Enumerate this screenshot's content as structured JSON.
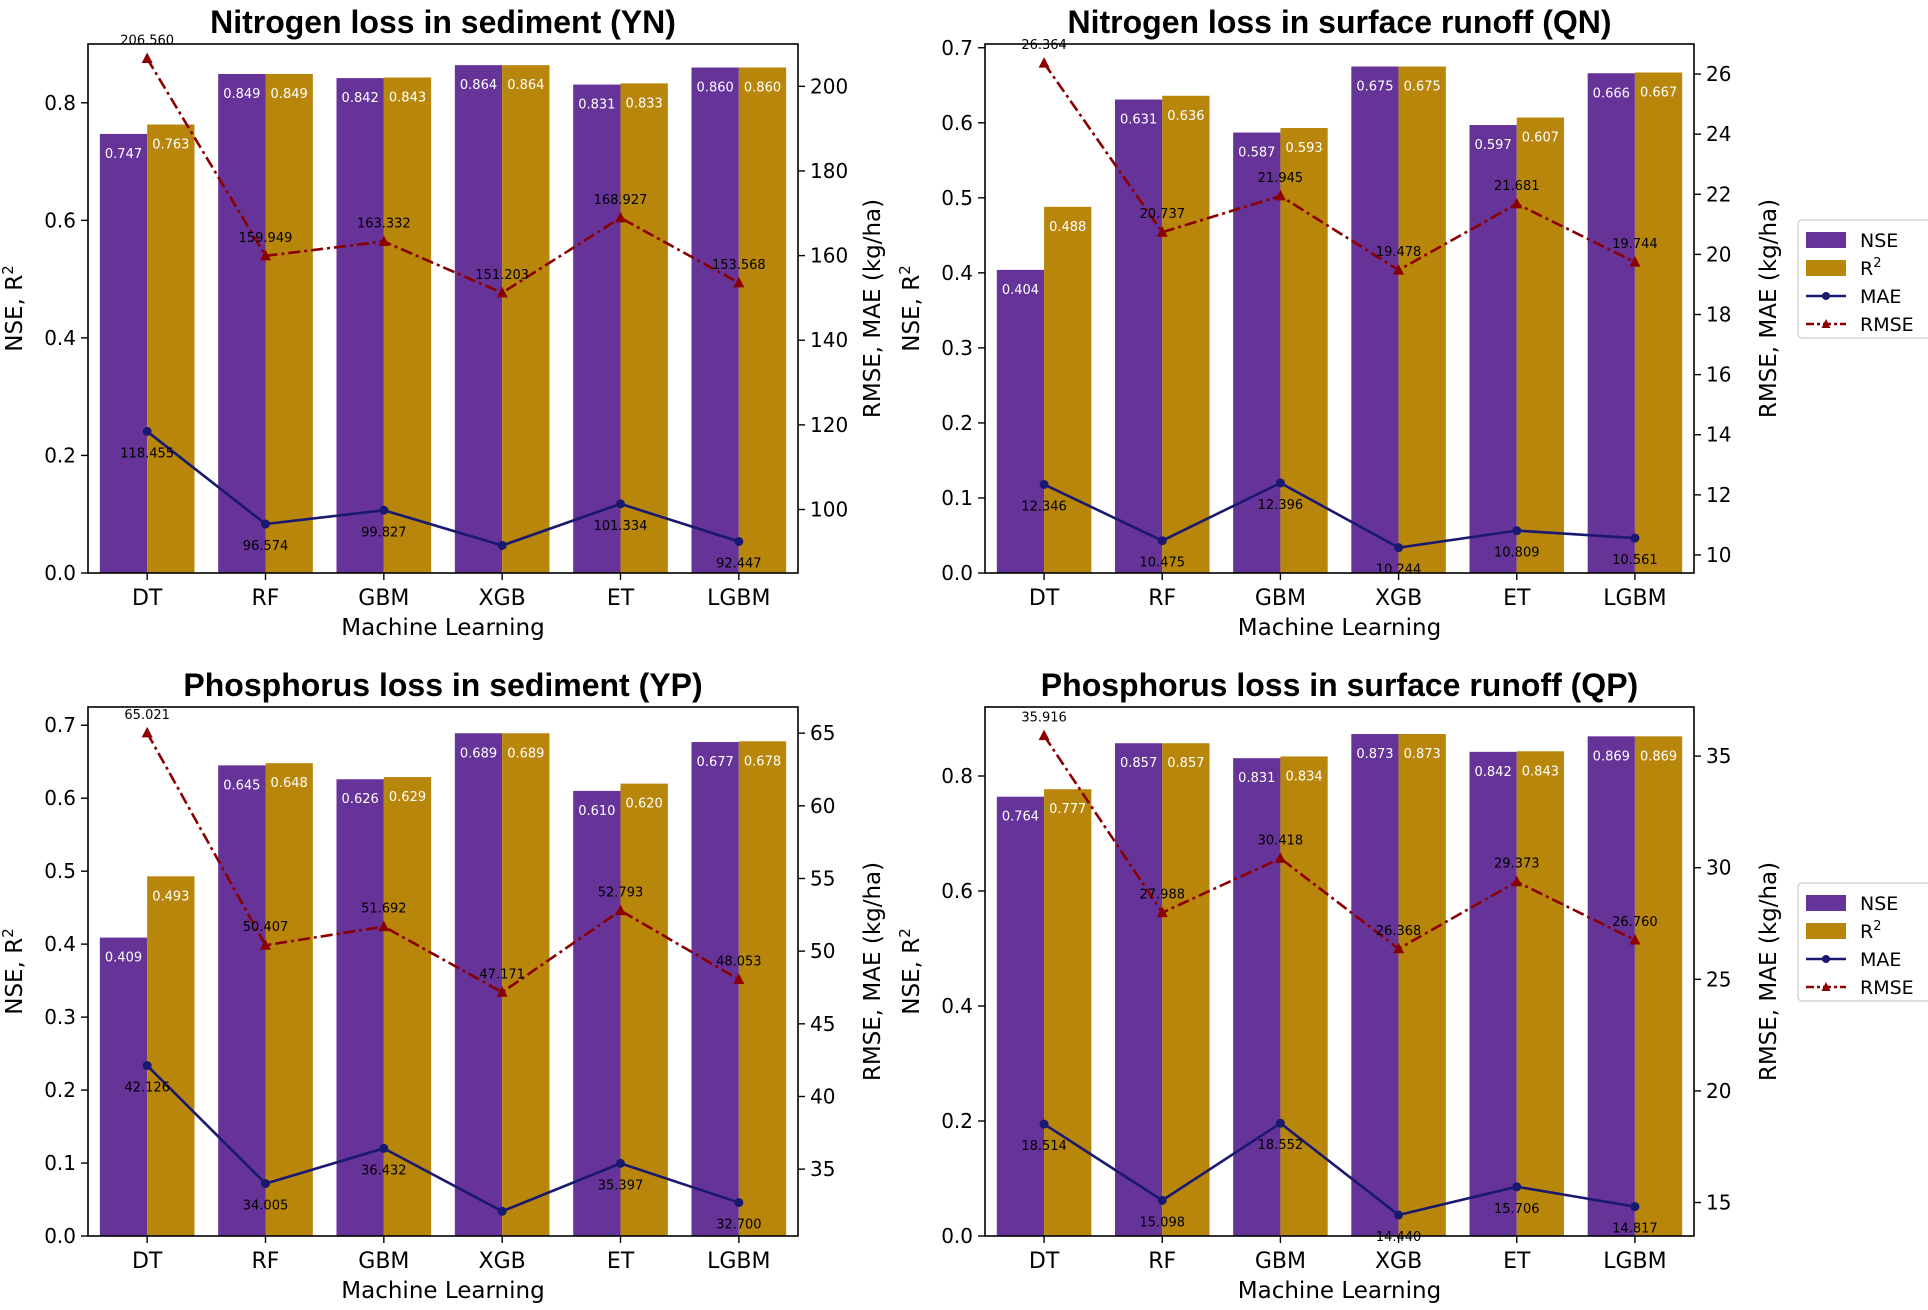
{
  "colors": {
    "nse": "#663399",
    "r2": "#b8860b",
    "mae": "#191970",
    "rmse": "#8b0000"
  },
  "legend": {
    "nse": "NSE",
    "r2": "R",
    "r2_sup": "2",
    "mae": "MAE",
    "rmse": "RMSE"
  },
  "chart_data": [
    {
      "type": "bar",
      "title": "Nitrogen loss in sediment (YN)",
      "xlabel": "Machine Learning",
      "ylabel": "NSE, R",
      "ylabel_sup": "2",
      "y2label": "RMSE, MAE (kg/ha)",
      "categories": [
        "DT",
        "RF",
        "GBM",
        "XGB",
        "ET",
        "LGBM"
      ],
      "ylim": [
        0,
        0.9
      ],
      "yticks": [
        0.0,
        0.2,
        0.4,
        0.6,
        0.8
      ],
      "y2lim": [
        85,
        210
      ],
      "y2ticks": [
        100,
        120,
        140,
        160,
        180,
        200
      ],
      "series": [
        {
          "name": "NSE",
          "axis": "left",
          "kind": "bar",
          "values": [
            0.747,
            0.849,
            0.842,
            0.864,
            0.831,
            0.86
          ],
          "labels": [
            "0.747",
            "0.849",
            "0.842",
            "0.864",
            "0.831",
            "0.860"
          ]
        },
        {
          "name": "R2",
          "axis": "left",
          "kind": "bar",
          "values": [
            0.763,
            0.849,
            0.843,
            0.864,
            0.833,
            0.86
          ],
          "labels": [
            "0.763",
            "0.849",
            "0.843",
            "0.864",
            "0.833",
            "0.860"
          ]
        },
        {
          "name": "MAE",
          "axis": "right",
          "kind": "line",
          "values": [
            118.455,
            96.574,
            99.827,
            91.5,
            101.334,
            92.447
          ],
          "labels": [
            "118.455",
            "96.574",
            "99.827",
            "",
            "101.334",
            "92.447"
          ]
        },
        {
          "name": "RMSE",
          "axis": "right",
          "kind": "line",
          "values": [
            206.56,
            159.949,
            163.332,
            151.203,
            168.927,
            153.568
          ],
          "labels": [
            "206.560",
            "159.949",
            "163.332",
            "151.203",
            "168.927",
            "153.568"
          ]
        }
      ],
      "legend": false,
      "grid": false
    },
    {
      "type": "bar",
      "title": "Nitrogen loss in surface runoff (QN)",
      "xlabel": "Machine Learning",
      "ylabel": "NSE, R",
      "ylabel_sup": "2",
      "y2label": "RMSE, MAE (kg/ha)",
      "categories": [
        "DT",
        "RF",
        "GBM",
        "XGB",
        "ET",
        "LGBM"
      ],
      "ylim": [
        0,
        0.705
      ],
      "yticks": [
        0.0,
        0.1,
        0.2,
        0.3,
        0.4,
        0.5,
        0.6,
        0.7
      ],
      "y2lim": [
        9.4,
        27.0
      ],
      "y2ticks": [
        10,
        12,
        14,
        16,
        18,
        20,
        22,
        24,
        26
      ],
      "series": [
        {
          "name": "NSE",
          "axis": "left",
          "kind": "bar",
          "values": [
            0.404,
            0.631,
            0.587,
            0.675,
            0.597,
            0.666
          ],
          "labels": [
            "0.404",
            "0.631",
            "0.587",
            "0.675",
            "0.597",
            "0.666"
          ]
        },
        {
          "name": "R2",
          "axis": "left",
          "kind": "bar",
          "values": [
            0.488,
            0.636,
            0.593,
            0.675,
            0.607,
            0.667
          ],
          "labels": [
            "0.488",
            "0.636",
            "0.593",
            "0.675",
            "0.607",
            "0.667"
          ]
        },
        {
          "name": "MAE",
          "axis": "right",
          "kind": "line",
          "values": [
            12.346,
            10.475,
            12.396,
            10.244,
            10.809,
            10.561
          ],
          "labels": [
            "12.346",
            "10.475",
            "12.396",
            "10.244",
            "10.809",
            "10.561"
          ]
        },
        {
          "name": "RMSE",
          "axis": "right",
          "kind": "line",
          "values": [
            26.364,
            20.737,
            21.945,
            19.478,
            21.681,
            19.744
          ],
          "labels": [
            "26.364",
            "20.737",
            "21.945",
            "19.478",
            "21.681",
            "19.744"
          ]
        }
      ],
      "legend": true,
      "legend_position": "right"
    },
    {
      "type": "bar",
      "title": "Phosphorus loss in sediment (YP)",
      "xlabel": "Machine Learning",
      "ylabel": "NSE, R",
      "ylabel_sup": "2",
      "y2label": "RMSE, MAE (kg/ha)",
      "categories": [
        "DT",
        "RF",
        "GBM",
        "XGB",
        "ET",
        "LGBM"
      ],
      "ylim": [
        0,
        0.725
      ],
      "yticks": [
        0.0,
        0.1,
        0.2,
        0.3,
        0.4,
        0.5,
        0.6,
        0.7
      ],
      "y2lim": [
        30.4,
        66.8
      ],
      "y2ticks": [
        35,
        40,
        45,
        50,
        55,
        60,
        65
      ],
      "series": [
        {
          "name": "NSE",
          "axis": "left",
          "kind": "bar",
          "values": [
            0.409,
            0.645,
            0.626,
            0.689,
            0.61,
            0.677
          ],
          "labels": [
            "0.409",
            "0.645",
            "0.626",
            "0.689",
            "0.610",
            "0.677"
          ]
        },
        {
          "name": "R2",
          "axis": "left",
          "kind": "bar",
          "values": [
            0.493,
            0.648,
            0.629,
            0.689,
            0.62,
            0.678
          ],
          "labels": [
            "0.493",
            "0.648",
            "0.629",
            "0.689",
            "0.620",
            "0.678"
          ]
        },
        {
          "name": "MAE",
          "axis": "right",
          "kind": "line",
          "values": [
            42.126,
            34.005,
            36.432,
            32.1,
            35.397,
            32.7
          ],
          "labels": [
            "42.126",
            "34.005",
            "36.432",
            "",
            "35.397",
            "32.700"
          ]
        },
        {
          "name": "RMSE",
          "axis": "right",
          "kind": "line",
          "values": [
            65.021,
            50.407,
            51.692,
            47.171,
            52.793,
            48.053
          ],
          "labels": [
            "65.021",
            "50.407",
            "51.692",
            "47.171",
            "52.793",
            "48.053"
          ]
        }
      ],
      "legend": false
    },
    {
      "type": "bar",
      "title": "Phosphorus loss in surface runoff (QP)",
      "xlabel": "Machine Learning",
      "ylabel": "NSE, R",
      "ylabel_sup": "2",
      "y2label": "RMSE, MAE (kg/ha)",
      "categories": [
        "DT",
        "RF",
        "GBM",
        "XGB",
        "ET",
        "LGBM"
      ],
      "ylim": [
        0,
        0.92
      ],
      "yticks": [
        0.0,
        0.2,
        0.4,
        0.6,
        0.8
      ],
      "y2lim": [
        13.5,
        37.2
      ],
      "y2ticks": [
        15,
        20,
        25,
        30,
        35
      ],
      "series": [
        {
          "name": "NSE",
          "axis": "left",
          "kind": "bar",
          "values": [
            0.764,
            0.857,
            0.831,
            0.873,
            0.842,
            0.869
          ],
          "labels": [
            "0.764",
            "0.857",
            "0.831",
            "0.873",
            "0.842",
            "0.869"
          ]
        },
        {
          "name": "R2",
          "axis": "left",
          "kind": "bar",
          "values": [
            0.777,
            0.857,
            0.834,
            0.873,
            0.843,
            0.869
          ],
          "labels": [
            "0.777",
            "0.857",
            "0.834",
            "0.873",
            "0.843",
            "0.869"
          ]
        },
        {
          "name": "MAE",
          "axis": "right",
          "kind": "line",
          "values": [
            18.514,
            15.098,
            18.552,
            14.44,
            15.706,
            14.817
          ],
          "labels": [
            "18.514",
            "15.098",
            "18.552",
            "14.440",
            "15.706",
            "14.817"
          ]
        },
        {
          "name": "RMSE",
          "axis": "right",
          "kind": "line",
          "values": [
            35.916,
            27.988,
            30.418,
            26.368,
            29.373,
            26.76
          ],
          "labels": [
            "35.916",
            "27.988",
            "30.418",
            "26.368",
            "29.373",
            "26.760"
          ]
        }
      ],
      "legend": true,
      "legend_position": "right"
    }
  ]
}
